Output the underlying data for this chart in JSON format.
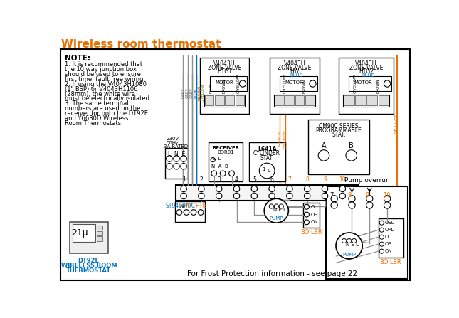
{
  "title": "Wireless room thermostat",
  "title_color": "#E87000",
  "title_fontsize": 11,
  "bg_color": "#ffffff",
  "note_title": "NOTE:",
  "note_lines": [
    "1. It is recommended that",
    "the 10 way junction box",
    "should be used to ensure",
    "first time, fault free wiring.",
    "2. If using the V4043H1080",
    "(1\" BSP) or V4043H1106",
    "(28mm), the white wire",
    "must be electrically isolated.",
    "3. The same terminal",
    "numbers are used on the",
    "receiver for both the DT92E",
    "and Y6630D Wireless",
    "Room Thermostats."
  ],
  "valve1_label": [
    "V4043H",
    "ZONE VALVE",
    "HTG1"
  ],
  "valve2_label": [
    "V4043H",
    "ZONE VALVE",
    "HW"
  ],
  "valve3_label": [
    "V4043H",
    "ZONE VALVE",
    "HTG2"
  ],
  "pump_overrun_label": "Pump overrun",
  "frost_text": "For Frost Protection information - see page 22",
  "dt92e_label": [
    "DT92E",
    "WIRELESS ROOM",
    "THERMOSTAT"
  ],
  "st9400_label": "ST9400A/C",
  "boiler_label": "BOILER",
  "receiver_label": [
    "RECEIVER",
    "BOR01"
  ],
  "l641a_label": [
    "L641A",
    "CYLINDER",
    "STAT."
  ],
  "cm900_label": [
    "CM900 SERIES",
    "PROGRAMMABLE",
    "STAT."
  ],
  "wire_color_blue": "#0070C0",
  "wire_color_orange": "#E87000",
  "wire_color_gray": "#909090",
  "label_color_blue": "#0070C0",
  "label_color_orange": "#E87000"
}
